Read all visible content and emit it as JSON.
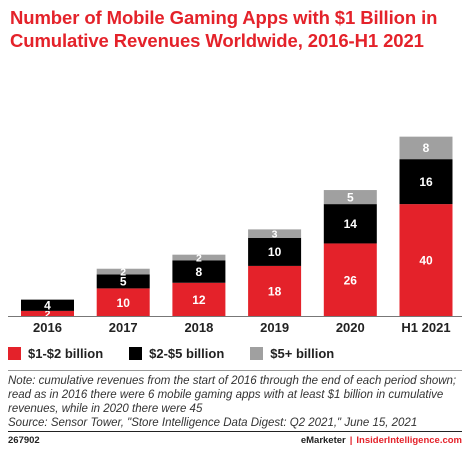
{
  "chart_data": {
    "type": "bar",
    "stacked": true,
    "title": "Number of Mobile Gaming Apps with $1 Billion in Cumulative Revenues Worldwide, 2016-H1 2021",
    "categories": [
      "2016",
      "2017",
      "2018",
      "2019",
      "2020",
      "H1 2021"
    ],
    "series": [
      {
        "name": "$1-$2 billion",
        "color": "#e4222a",
        "values": [
          2,
          10,
          12,
          18,
          26,
          40
        ]
      },
      {
        "name": "$2-$5 billion",
        "color": "#000000",
        "values": [
          4,
          5,
          8,
          10,
          14,
          16
        ]
      },
      {
        "name": "$5+ billion",
        "color": "#a0a0a0",
        "values": [
          0,
          2,
          2,
          3,
          5,
          8
        ]
      }
    ],
    "legend_position": "bottom-left"
  },
  "note": "Note: cumulative revenues from the start of 2016 through the end of each period shown; read as in 2016 there were 6 mobile gaming apps with at least $1 billion in cumulative revenues, while in 2020 there were 45",
  "source": "Source: Sensor Tower, \"Store Intelligence Data Digest: Q2 2021,\" June 15, 2021",
  "footer": {
    "chart_id": "267902",
    "brand": "eMarketer",
    "separator": "|",
    "brand_site": "InsiderIntelligence.com"
  }
}
